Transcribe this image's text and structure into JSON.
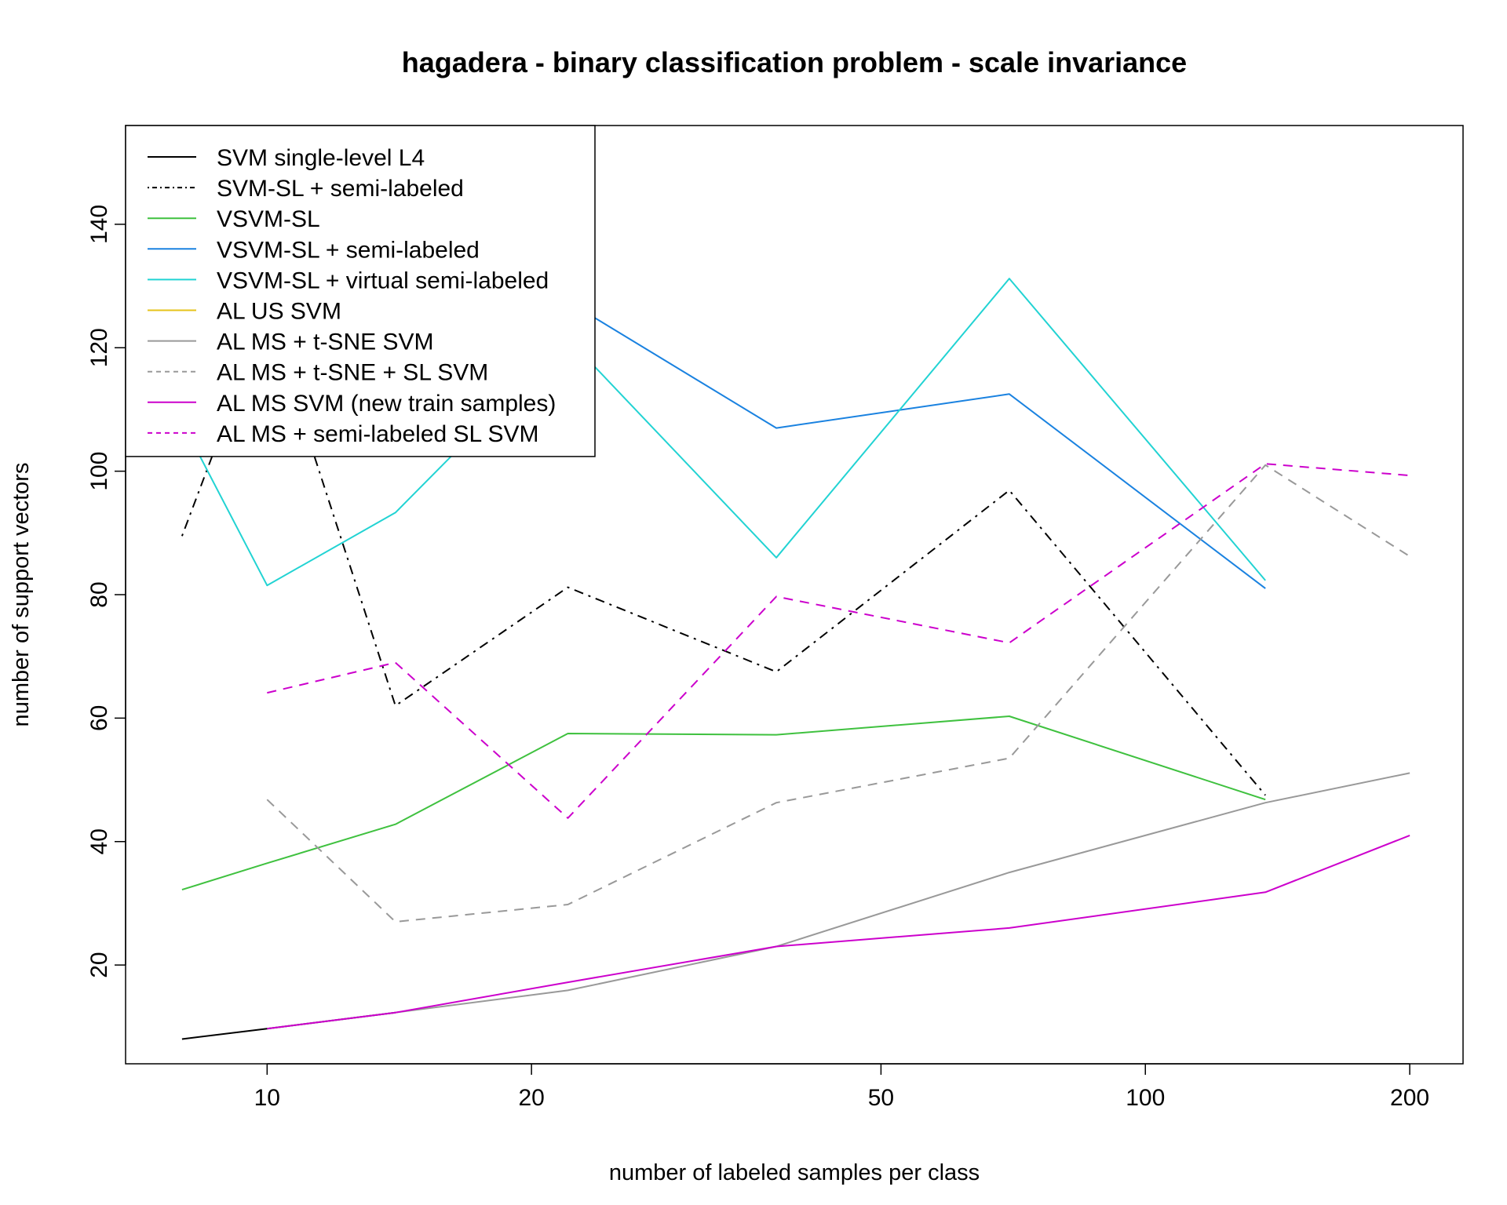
{
  "chart_data": {
    "type": "line",
    "title": "hagadera - binary classification problem - scale invariance",
    "xlabel": "number of labeled samples per class",
    "ylabel": "number of support vectors",
    "x_scale": "log",
    "x_ticks": [
      10,
      20,
      50,
      100,
      200
    ],
    "y_ticks": [
      20,
      40,
      60,
      80,
      100,
      120,
      140
    ],
    "xlim": [
      6.9,
      230
    ],
    "ylim": [
      4,
      156
    ],
    "grid": false,
    "legend_position": "top-left",
    "x": [
      8,
      10,
      14,
      22,
      38,
      70,
      137,
      200
    ],
    "series": [
      {
        "name": "SVM single-level L4",
        "color": "#000000",
        "dash": "solid",
        "values": [
          8,
          9.7,
          12.3,
          null,
          null,
          null,
          null,
          null
        ]
      },
      {
        "name": "SVM-SL + semi-labeled",
        "color": "#000000",
        "dash": "dotdash",
        "values": [
          89.5,
          126,
          62,
          81.2,
          67.5,
          96.9,
          47.5,
          null
        ]
      },
      {
        "name": "VSVM-SL",
        "color": "#3fc13f",
        "dash": "solid",
        "values": [
          32.2,
          36.5,
          42.8,
          57.5,
          57.3,
          60.3,
          46.8,
          null
        ]
      },
      {
        "name": "VSVM-SL + semi-labeled",
        "color": "#1a82e0",
        "dash": "solid",
        "values": [
          null,
          null,
          130,
          127.5,
          107,
          112.5,
          81,
          null
        ]
      },
      {
        "name": "VSVM-SL + virtual semi-labeled",
        "color": "#22d3d3",
        "dash": "solid",
        "values": [
          108,
          81.5,
          93.3,
          121.5,
          86,
          131.2,
          82.3,
          null
        ]
      },
      {
        "name": "AL US SVM",
        "color": "#e6c31a",
        "dash": "solid",
        "values": [
          null,
          null,
          null,
          null,
          null,
          null,
          null,
          null
        ]
      },
      {
        "name": "AL MS + t-SNE SVM",
        "color": "#999999",
        "dash": "solid",
        "values": [
          null,
          9.7,
          12.3,
          15.9,
          23,
          35,
          46.3,
          51.1
        ]
      },
      {
        "name": "AL MS + t-SNE + SL SVM",
        "color": "#999999",
        "dash": "dashed",
        "values": [
          null,
          46.8,
          27,
          29.8,
          46.3,
          53.5,
          101,
          86.2
        ]
      },
      {
        "name": "AL MS SVM (new train samples)",
        "color": "#cc00cc",
        "dash": "solid",
        "values": [
          null,
          9.7,
          12.3,
          17.2,
          23,
          26,
          31.8,
          41
        ]
      },
      {
        "name": "AL MS + semi-labeled SL SVM",
        "color": "#cc00cc",
        "dash": "dashed",
        "values": [
          null,
          64.1,
          69,
          43.8,
          79.7,
          72.2,
          101.2,
          99.3
        ]
      }
    ]
  }
}
